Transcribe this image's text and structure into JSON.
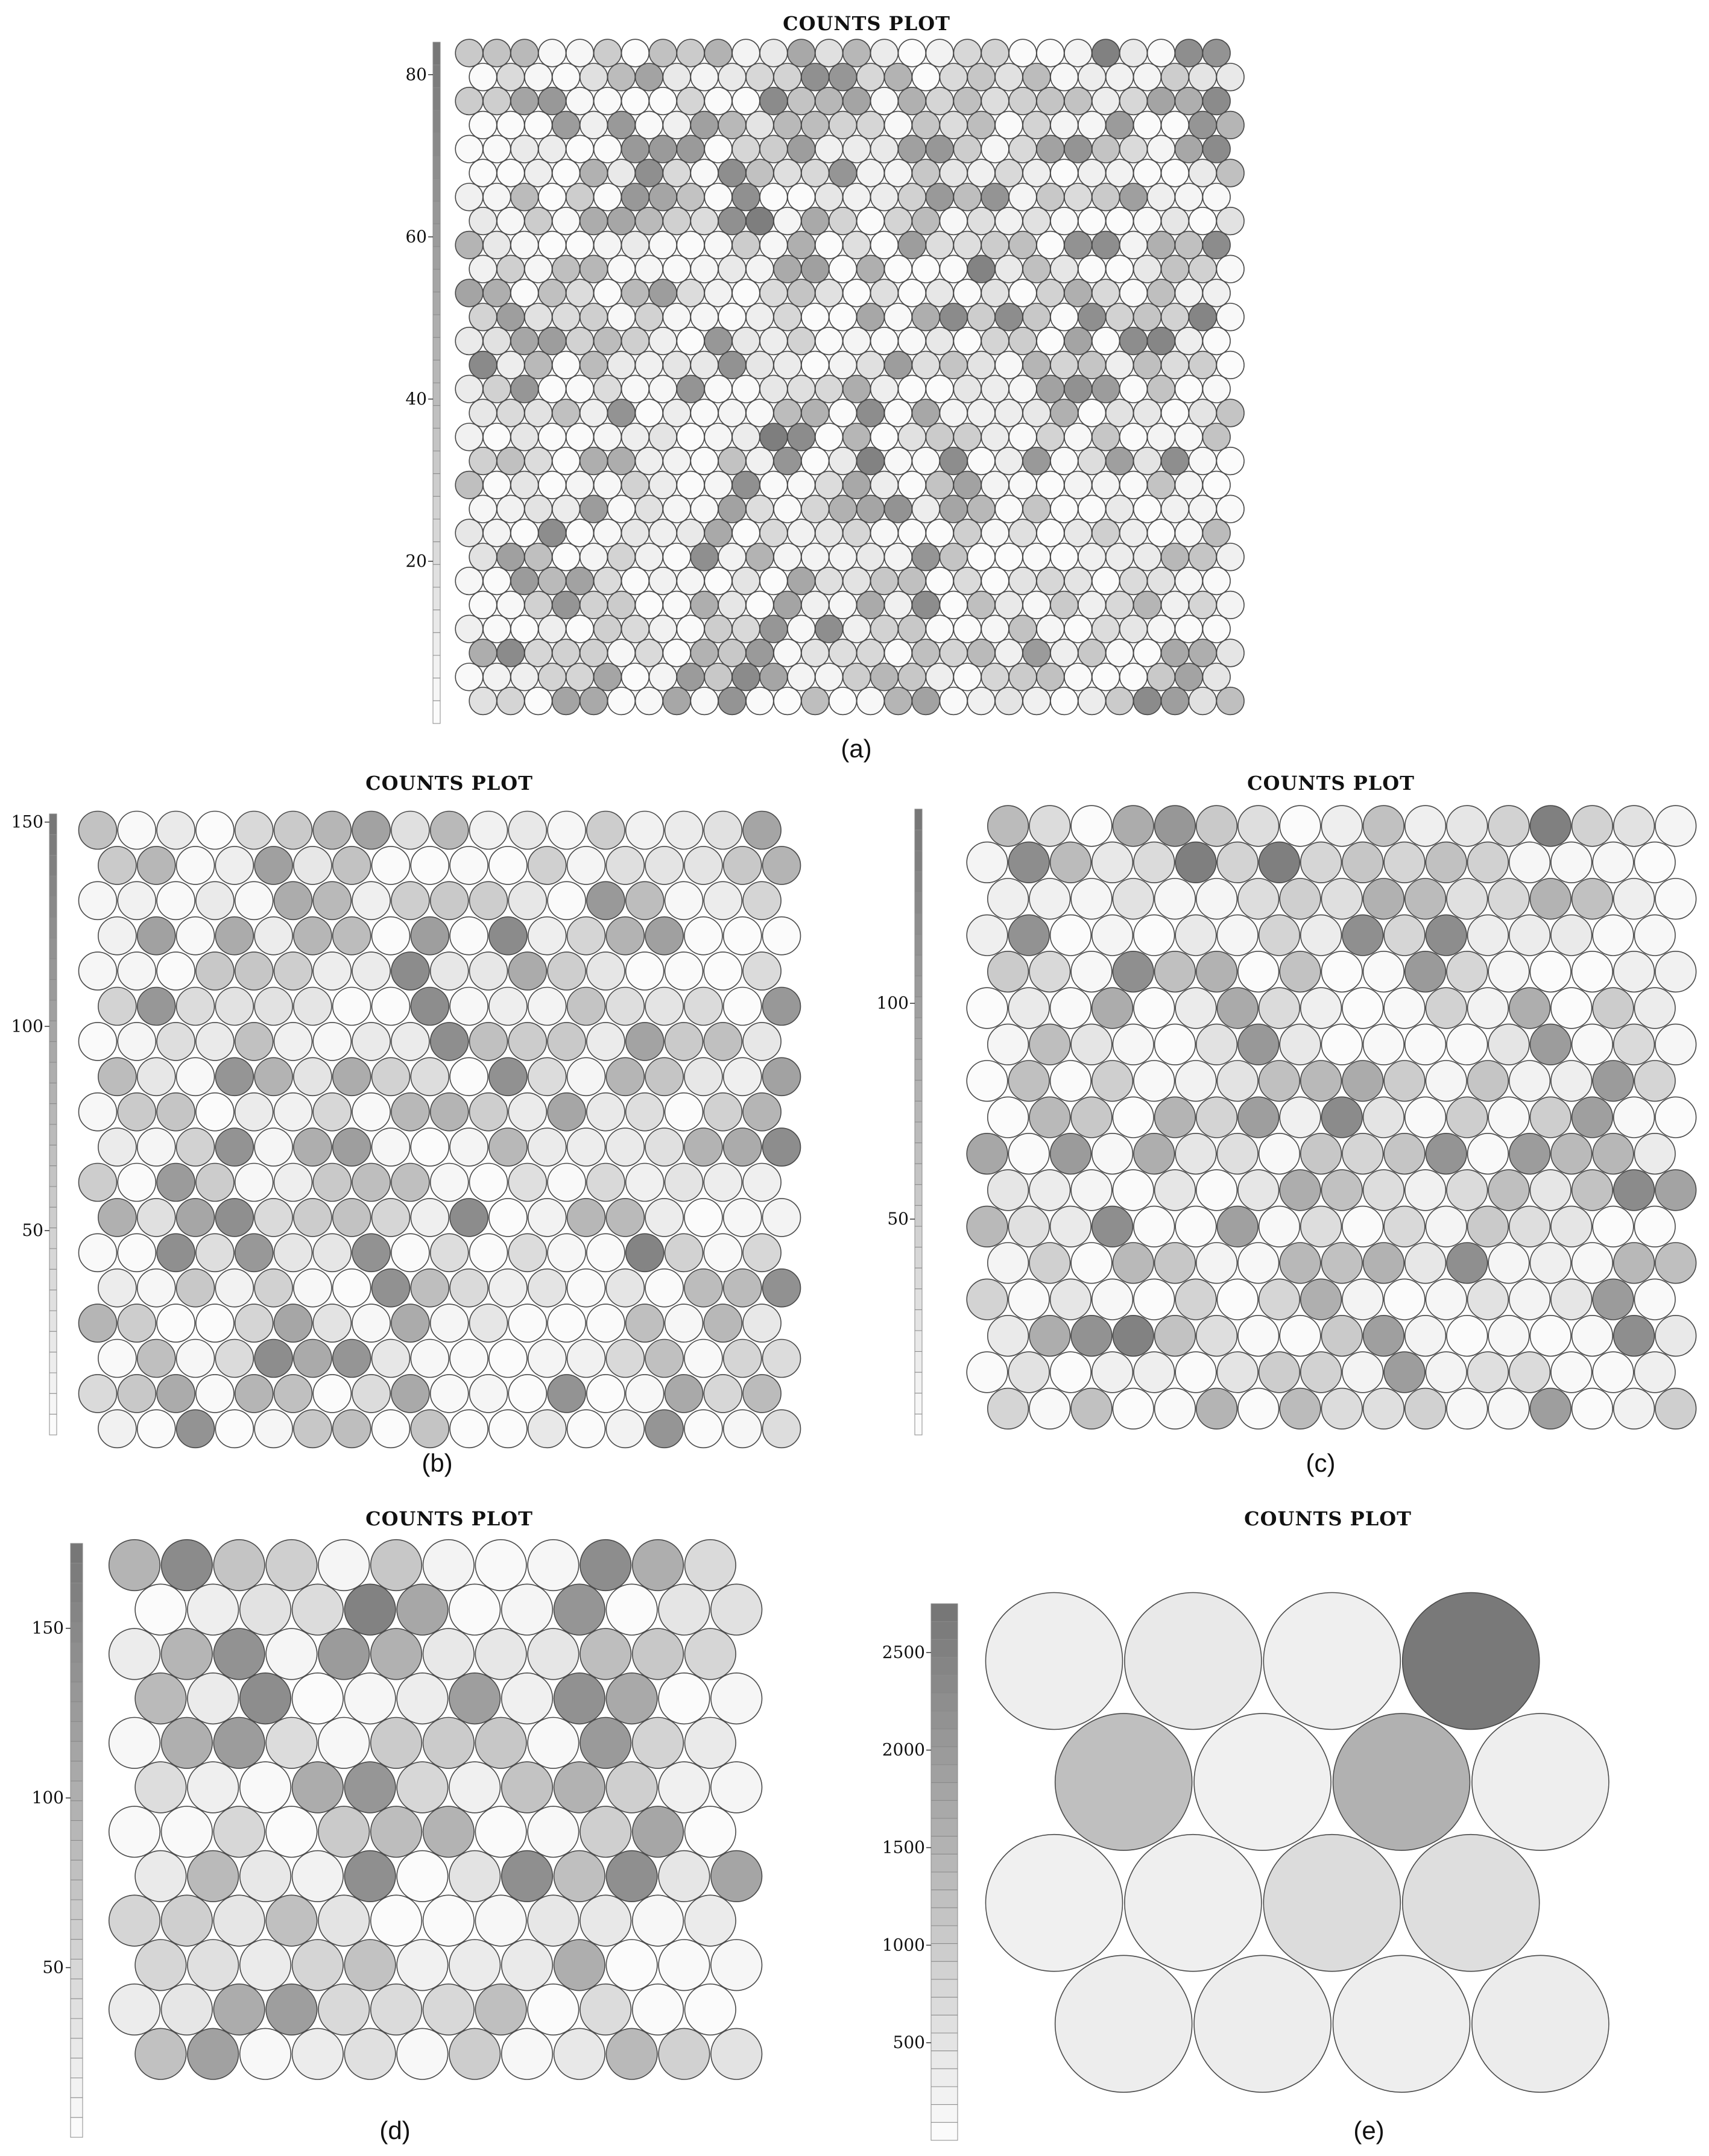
{
  "colors": {
    "hex_stroke": "#4a4a4a",
    "low": "#fbfbfb",
    "high": "#777777"
  },
  "captions": {
    "a": "(a)",
    "b": "(b)",
    "c": "(c)",
    "d": "(d)",
    "e": "(e)"
  },
  "chart_data": [
    {
      "id": "a",
      "type": "heatmap",
      "layout": "hexagonal",
      "title": "COUNTS PLOT",
      "cols": 28,
      "rows": 28,
      "colorbar": {
        "ticks": [
          20,
          40,
          60,
          80
        ],
        "ylim": [
          0,
          84
        ]
      },
      "tick_labels": [
        "20",
        "40",
        "60",
        "80"
      ]
    },
    {
      "id": "b",
      "type": "heatmap",
      "layout": "hexagonal",
      "title": "COUNTS PLOT",
      "cols": 18,
      "rows": 18,
      "colorbar": {
        "ticks": [
          50,
          100,
          150
        ],
        "ylim": [
          0,
          152
        ]
      },
      "tick_labels": [
        "50",
        "100",
        "150"
      ]
    },
    {
      "id": "c",
      "type": "heatmap",
      "layout": "hexagonal",
      "title": "COUNTS PLOT",
      "cols": 17,
      "rows": 17,
      "colorbar": {
        "ticks": [
          50,
          100
        ],
        "ylim": [
          0,
          145
        ]
      },
      "tick_labels": [
        "50",
        "100"
      ]
    },
    {
      "id": "d",
      "type": "heatmap",
      "layout": "hexagonal",
      "title": "COUNTS PLOT",
      "cols": 12,
      "rows": 12,
      "colorbar": {
        "ticks": [
          50,
          100,
          150
        ],
        "ylim": [
          0,
          175
        ]
      },
      "tick_labels": [
        "50",
        "100",
        "150"
      ]
    },
    {
      "id": "e",
      "type": "heatmap",
      "layout": "hexagonal",
      "title": "COUNTS PLOT",
      "cols": 4,
      "rows": 4,
      "colorbar": {
        "ticks": [
          500,
          1000,
          1500,
          2000,
          2500
        ],
        "ylim": [
          0,
          2750
        ]
      },
      "tick_labels": [
        "500",
        "1000",
        "1500",
        "2000",
        "2500"
      ],
      "values": [
        [
          280,
          380,
          250,
          2700
        ],
        [
          1250,
          230,
          1550,
          280
        ],
        [
          230,
          260,
          650,
          600
        ],
        [
          300,
          290,
          270,
          310
        ]
      ]
    }
  ]
}
